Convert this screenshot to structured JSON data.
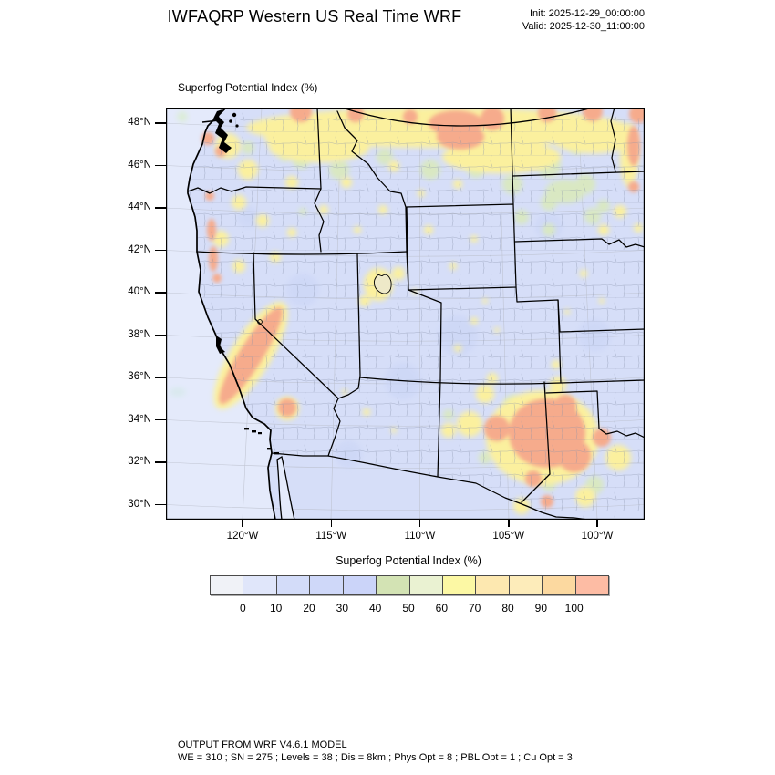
{
  "header": {
    "title": "IWFAQRP Western US Real Time WRF",
    "init": "Init: 2025-12-29_00:00:00",
    "valid": "Valid: 2025-12-30_11:00:00"
  },
  "map": {
    "field_label": "Superfog Potential Index   (%)",
    "lat_ticks": [
      "48°N",
      "46°N",
      "44°N",
      "42°N",
      "40°N",
      "38°N",
      "36°N",
      "34°N",
      "32°N",
      "30°N"
    ],
    "lon_ticks": [
      "120°W",
      "115°W",
      "110°W",
      "105°W",
      "100°W"
    ]
  },
  "colorbar": {
    "title": "Superfog Potential Index  (%)",
    "tick_labels": [
      "0",
      "10",
      "20",
      "30",
      "40",
      "50",
      "60",
      "70",
      "80",
      "90",
      "100"
    ],
    "cell_colors": [
      "#f0f2f7",
      "#e0e6fa",
      "#d3dcf9",
      "#cfd8f9",
      "#cbd4f9",
      "#d3e3b4",
      "#eaf2d2",
      "#fcf8a4",
      "#fde8b0",
      "#fdecba",
      "#fcd9a0",
      "#fdbca4"
    ]
  },
  "footer": {
    "line1": "OUTPUT FROM WRF V4.6.1 MODEL",
    "line2": "WE = 310 ; SN = 275 ; Levels = 38 ; Dis = 8km ; Phys Opt = 8 ; PBL Opt = 1 ; Cu Opt = 3"
  },
  "chart_data": {
    "type": "heatmap",
    "title": "Superfog Potential Index  (%)",
    "units": "%",
    "scale_bin_edges": [
      0,
      10,
      20,
      30,
      40,
      50,
      60,
      70,
      80,
      90,
      100
    ],
    "scale_colors": [
      "#f0f2f7",
      "#e0e6fa",
      "#d3dcf9",
      "#cfd8f9",
      "#cbd4f9",
      "#d3e3b4",
      "#eaf2d2",
      "#fcf8a4",
      "#fde8b0",
      "#fdecba",
      "#fcd9a0",
      "#fdbca4"
    ],
    "lat_axis": [
      "30°N",
      "32°N",
      "34°N",
      "36°N",
      "38°N",
      "40°N",
      "42°N",
      "44°N",
      "46°N",
      "48°N"
    ],
    "lon_axis": [
      "120°W",
      "115°W",
      "110°W",
      "105°W",
      "100°W"
    ],
    "high_value_regions": [
      "band along US-Canada border (esp. Montana)",
      "California Central Valley",
      "eastern New Mexico and Texas Panhandle",
      "Red River Valley along map's east edge"
    ],
    "background_value_range": "0-40"
  }
}
